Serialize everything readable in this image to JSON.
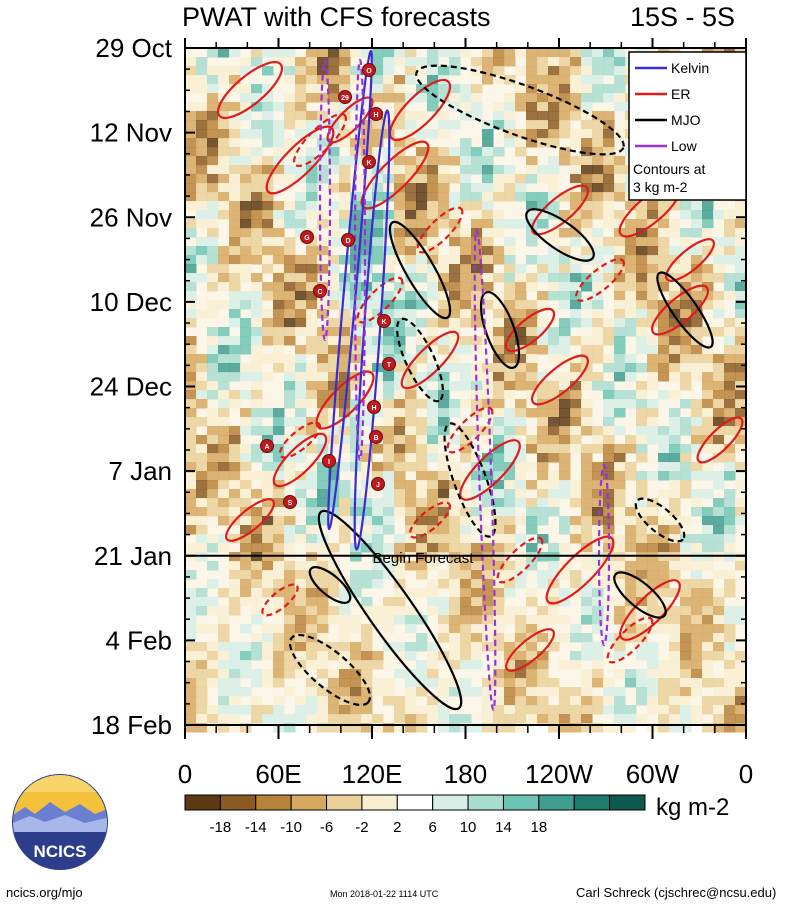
{
  "title_left": "PWAT with CFS forecasts",
  "title_right": "15S - 5S",
  "chart_data": {
    "type": "heatmap",
    "title": "PWAT with CFS forecasts",
    "region": "15S - 5S",
    "x_ticks": [
      "0",
      "60E",
      "120E",
      "180",
      "120W",
      "60W",
      "0"
    ],
    "x_range": [
      0,
      360
    ],
    "y_ticks": [
      "29 Oct",
      "12 Nov",
      "26 Nov",
      "10 Dec",
      "24 Dec",
      "7 Jan",
      "21 Jan",
      "4 Feb",
      "18 Feb"
    ],
    "y_range": [
      "2017-10-29",
      "2018-02-18"
    ],
    "forecast_start": "21 Jan",
    "forecast_label": "Begin Forecast",
    "colorbar": {
      "levels": [
        -18,
        -14,
        -10,
        -6,
        -2,
        2,
        6,
        10,
        14,
        18
      ],
      "labels": [
        "-18",
        "-14",
        "-10",
        "-6",
        "-2",
        "2",
        "6",
        "10",
        "14",
        "18"
      ],
      "colors": [
        "#5c3a14",
        "#8a5a22",
        "#b8823a",
        "#d6a860",
        "#ead19a",
        "#f8efd2",
        "#ffffff",
        "#d7efe8",
        "#a9ddd0",
        "#6ec4b4",
        "#3f9e90",
        "#1e7a6a",
        "#0c5a4e"
      ],
      "unit": "kg m-2"
    },
    "legend": {
      "position": "top-right",
      "entries": [
        {
          "name": "Kelvin",
          "color": "#3b2bd6"
        },
        {
          "name": "ER",
          "color": "#e01b1b"
        },
        {
          "name": "MJO",
          "color": "#000000"
        },
        {
          "name": "Low",
          "color": "#9b32d9"
        }
      ],
      "note_line1": "Contours at",
      "note_line2": "3 kg m-2"
    },
    "storm_markers": [
      "29",
      "O",
      "H",
      "K",
      "G",
      "D",
      "C",
      "K",
      "T",
      "H",
      "B",
      "A",
      "I",
      "J",
      "S"
    ]
  },
  "footer": {
    "logo_text": "NCICS",
    "left": "ncics.org/mjo",
    "center": "Mon 2018-01-22 1114 UTC",
    "right": "Carl Schreck (cjschrec@ncsu.edu)"
  }
}
